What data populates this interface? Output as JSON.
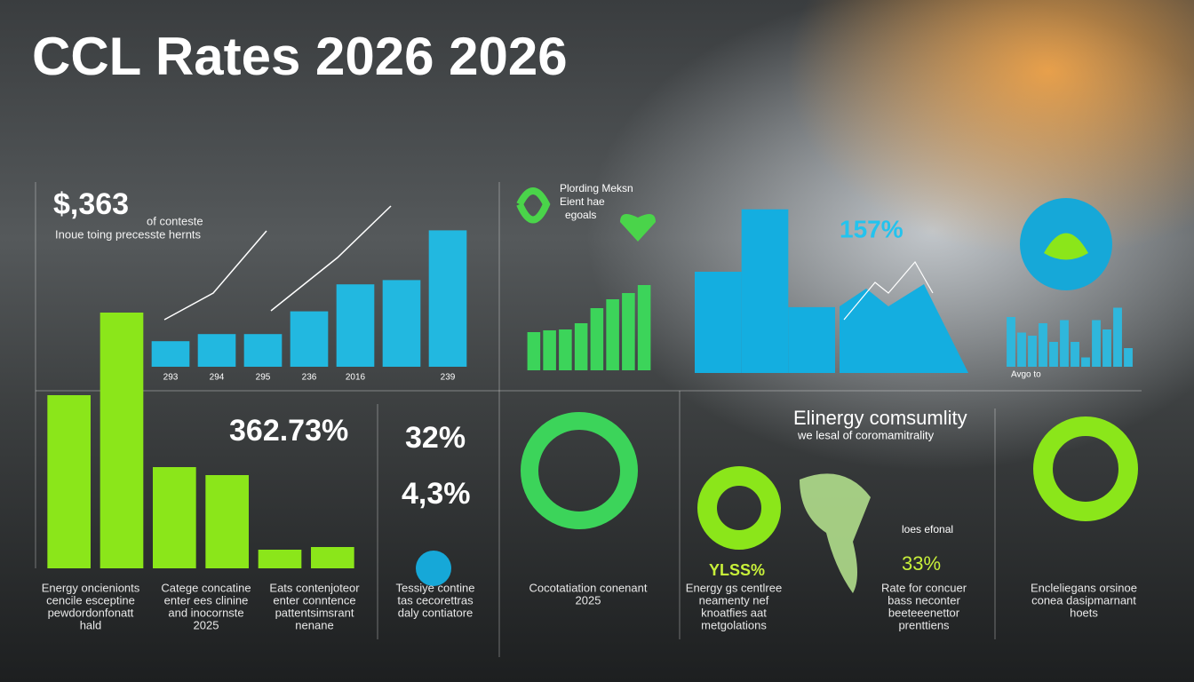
{
  "header": {
    "title": "CCL Rates 2026 2026"
  },
  "panels": {
    "price": "$,363",
    "price_note": "of conteste",
    "price_sub": "Inoue toing precesste hernts",
    "plording": [
      "Plording Meksn",
      "Eient hae",
      "egoals"
    ],
    "pct_a": "157%",
    "avg": "Avgo to",
    "pct_b": "362.73%",
    "pct_c": "32%",
    "pct_d": "4,3%",
    "energy_title": "Elinergy comsumlity",
    "energy_sub": "we lesal of coromamitrality",
    "ylss": "YLSS%",
    "pct_e": "33%",
    "loes": "loes efonal"
  },
  "captions": [
    [
      "Energy oncienionts",
      "cencile esceptine",
      "pewdordonfonatt",
      "hald"
    ],
    [
      "Catege concatine",
      "enter ees clinine",
      "and inocornste",
      "2025"
    ],
    [
      "Eats contenjoteor",
      "enter conntence",
      "pattentsimsrant",
      "nenane"
    ],
    [
      "Tessiye contine",
      "tas cecorettras",
      "daly contiatore"
    ],
    [
      "Cocotatiation conenant",
      "2025"
    ],
    [
      "Energy gs centlree",
      "neamenty nef",
      "knoatfies aat",
      "metgolations"
    ],
    [
      "Rate for concuer",
      "bass neconter",
      "beeteeenettor",
      "prenttiens"
    ],
    [
      "Encleliegans orsinoe",
      "conea dasipmarnant",
      "hoets"
    ]
  ],
  "bar_groups": [
    {
      "categories": [
        "293",
        "294",
        "295",
        "236",
        "2016",
        null,
        "239"
      ],
      "values": [
        18,
        23,
        23,
        39,
        58,
        61,
        96
      ],
      "color": "#22b8e0",
      "ylim": [
        0,
        100
      ]
    },
    {
      "values": [
        65,
        96,
        38,
        35,
        7,
        8
      ],
      "color": "#8be61a",
      "ylim": [
        0,
        100
      ]
    },
    {
      "values": [
        43,
        45,
        46,
        53,
        70,
        80,
        87,
        96
      ],
      "color": "#3cd45a",
      "ylim": [
        0,
        100
      ]
    },
    {
      "values": [
        60,
        97,
        39
      ],
      "color": "#14aee0",
      "ylim": [
        0,
        100
      ]
    },
    {
      "values": [
        80,
        55,
        50,
        70,
        40,
        75,
        40,
        15,
        75,
        60,
        95,
        30
      ],
      "color": "#2fb7dc",
      "ylim": [
        0,
        100
      ]
    }
  ]
}
